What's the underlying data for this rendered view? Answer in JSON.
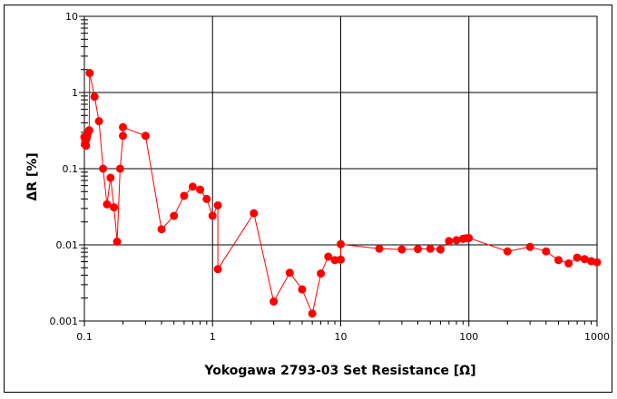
{
  "chart_data": {
    "type": "scatter",
    "title": "",
    "xlabel": "Yokogawa 2793-03 Set Resistance [Ω]",
    "ylabel": "ΔR [%]",
    "xscale": "log",
    "yscale": "log",
    "xlim": [
      0.1,
      1000
    ],
    "ylim": [
      0.001,
      10
    ],
    "x_ticks": [
      "0.1",
      "1",
      "10",
      "100",
      "1000"
    ],
    "y_ticks": [
      "0.001",
      "0.01",
      "0.1",
      "1",
      "10"
    ],
    "grid": true,
    "legend": null,
    "series": [
      {
        "name": "ΔR",
        "color": "#ff0000",
        "marker": "circle",
        "line": true,
        "points": [
          [
            0.1,
            0.26
          ],
          [
            0.101,
            0.21
          ],
          [
            0.102,
            0.23
          ],
          [
            0.103,
            0.2
          ],
          [
            0.104,
            0.25
          ],
          [
            0.105,
            0.27
          ],
          [
            0.107,
            0.3
          ],
          [
            0.109,
            0.32
          ],
          [
            0.11,
            1.8
          ],
          [
            0.12,
            0.88
          ],
          [
            0.13,
            0.42
          ],
          [
            0.14,
            0.1
          ],
          [
            0.15,
            0.034
          ],
          [
            0.16,
            0.076
          ],
          [
            0.17,
            0.031
          ],
          [
            0.18,
            0.011
          ],
          [
            0.19,
            0.1
          ],
          [
            0.2,
            0.27
          ],
          [
            0.2,
            0.35
          ],
          [
            0.3,
            0.27
          ],
          [
            0.4,
            0.016
          ],
          [
            0.5,
            0.024
          ],
          [
            0.6,
            0.044
          ],
          [
            0.7,
            0.058
          ],
          [
            0.8,
            0.053
          ],
          [
            0.9,
            0.04
          ],
          [
            1.0,
            0.024
          ],
          [
            1.1,
            0.033
          ],
          [
            1.1,
            0.0048
          ],
          [
            2.1,
            0.026
          ],
          [
            3.0,
            0.0018
          ],
          [
            4.0,
            0.0043
          ],
          [
            5.0,
            0.0026
          ],
          [
            6.0,
            0.00125
          ],
          [
            7.0,
            0.0042
          ],
          [
            8.0,
            0.007
          ],
          [
            9.0,
            0.0063
          ],
          [
            10.0,
            0.0064
          ],
          [
            10.0,
            0.0102
          ],
          [
            20.0,
            0.0089
          ],
          [
            30.0,
            0.0087
          ],
          [
            40.0,
            0.0088
          ],
          [
            50.0,
            0.0089
          ],
          [
            60.0,
            0.0087
          ],
          [
            70.0,
            0.0112
          ],
          [
            80.0,
            0.0115
          ],
          [
            90.0,
            0.012
          ],
          [
            95.0,
            0.0122
          ],
          [
            100.0,
            0.0123
          ],
          [
            200.0,
            0.0082
          ],
          [
            300.0,
            0.0094
          ],
          [
            400.0,
            0.0082
          ],
          [
            500.0,
            0.0063
          ],
          [
            600.0,
            0.0057
          ],
          [
            700.0,
            0.0068
          ],
          [
            800.0,
            0.0065
          ],
          [
            900.0,
            0.0061
          ],
          [
            1000.0,
            0.0059
          ]
        ]
      }
    ]
  }
}
